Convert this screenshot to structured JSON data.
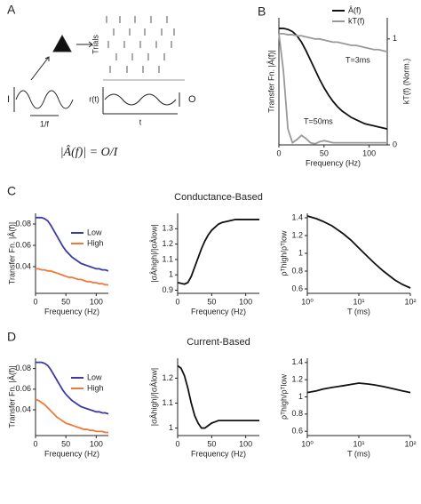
{
  "panel_labels": [
    "A",
    "B",
    "C",
    "D"
  ],
  "panel_a": {
    "trials": "Trials",
    "input": "I",
    "period": "1/f",
    "rate": "r(t)",
    "time": "t",
    "output": "O",
    "formula": "|Â(f)| = O/I"
  },
  "chart_data": [
    {
      "type": "line",
      "xlabel": "Frequency (Hz)",
      "ylabel": "Transfer Fn. |Â(f)|",
      "y2label": "kT(f) (Norm.)",
      "annotations": [
        "T=3ms",
        "T=50ms"
      ],
      "x": [
        0,
        5,
        10,
        15,
        20,
        25,
        30,
        35,
        40,
        45,
        50,
        55,
        60,
        65,
        70,
        75,
        80,
        85,
        90,
        95,
        100,
        105,
        110,
        115,
        120
      ],
      "xlim": [
        0,
        120
      ],
      "xticks": [
        0,
        50,
        100
      ],
      "ylim": [
        0,
        1.2
      ],
      "yticks": [],
      "y2lim": [
        0,
        1.2
      ],
      "y2ticks": [
        0,
        1
      ],
      "series": [
        {
          "name": "Â(f)",
          "color": "#111111",
          "values": [
            1.1,
            1.1,
            1.09,
            1.07,
            1.03,
            0.97,
            0.89,
            0.8,
            0.71,
            0.62,
            0.54,
            0.47,
            0.41,
            0.36,
            0.32,
            0.29,
            0.26,
            0.24,
            0.22,
            0.2,
            0.19,
            0.18,
            0.17,
            0.16,
            0.15
          ]
        },
        {
          "name": "kT(f)",
          "color": "#999999",
          "axis": "y2",
          "values": [
            1.05,
            1.05,
            1.04,
            1.04,
            1.03,
            1.03,
            1.02,
            1.01,
            1.0,
            1.0,
            0.99,
            0.98,
            0.97,
            0.97,
            0.96,
            0.95,
            0.94,
            0.94,
            0.93,
            0.92,
            0.91,
            0.9,
            0.9,
            0.89,
            0.88
          ]
        },
        {
          "color": "#999999",
          "axis": "y2",
          "values": [
            1.05,
            0.7,
            0.15,
            0.02,
            0.05,
            0.09,
            0.06,
            0.02,
            0.01,
            0.03,
            0.04,
            0.03,
            0.02,
            0.02,
            0.02,
            0.02,
            0.02,
            0.02,
            0.02,
            0.02,
            0.02,
            0.02,
            0.02,
            0.02,
            0.02
          ]
        }
      ]
    },
    {
      "type": "line",
      "xlabel": "Frequency (Hz)",
      "ylabel": "Transfer Fn. |Â(f)|",
      "x": [
        0,
        5,
        10,
        15,
        20,
        25,
        30,
        35,
        40,
        45,
        50,
        55,
        60,
        65,
        70,
        75,
        80,
        85,
        90,
        95,
        100,
        105,
        110,
        115,
        120
      ],
      "xlim": [
        0,
        120
      ],
      "xticks": [
        0,
        50,
        100
      ],
      "ylim": [
        0.015,
        0.09
      ],
      "yticks": [
        0.04,
        0.06,
        0.08
      ],
      "legend": "upper right",
      "series": [
        {
          "name": "Low",
          "color": "#3a3aa8",
          "values": [
            0.086,
            0.086,
            0.086,
            0.085,
            0.083,
            0.079,
            0.074,
            0.069,
            0.064,
            0.059,
            0.055,
            0.052,
            0.049,
            0.047,
            0.045,
            0.043,
            0.042,
            0.041,
            0.04,
            0.039,
            0.038,
            0.038,
            0.037,
            0.037,
            0.036
          ]
        },
        {
          "name": "High",
          "color": "#f07838",
          "values": [
            0.038,
            0.038,
            0.037,
            0.037,
            0.036,
            0.036,
            0.035,
            0.034,
            0.033,
            0.032,
            0.031,
            0.03,
            0.03,
            0.029,
            0.028,
            0.028,
            0.027,
            0.026,
            0.026,
            0.025,
            0.025,
            0.024,
            0.024,
            0.023,
            0.023
          ]
        }
      ]
    },
    {
      "type": "line",
      "title": "Conductance-Based",
      "xlabel": "Frequency (Hz)",
      "ylabel": "|σÂhigh|/|σÂlow|",
      "x": [
        0,
        5,
        10,
        15,
        20,
        25,
        30,
        35,
        40,
        45,
        50,
        55,
        60,
        65,
        70,
        75,
        80,
        85,
        90,
        95,
        100,
        105,
        110,
        115,
        120
      ],
      "xlim": [
        0,
        120
      ],
      "xticks": [
        0,
        50,
        100
      ],
      "ylim": [
        0.88,
        1.4
      ],
      "yticks": [
        0.9,
        1,
        1.1,
        1.2,
        1.3
      ],
      "series": [
        {
          "color": "#111111",
          "values": [
            0.95,
            0.945,
            0.94,
            0.95,
            0.99,
            1.05,
            1.11,
            1.17,
            1.22,
            1.26,
            1.29,
            1.31,
            1.33,
            1.34,
            1.345,
            1.35,
            1.355,
            1.36,
            1.36,
            1.36,
            1.36,
            1.36,
            1.36,
            1.36,
            1.36
          ]
        }
      ]
    },
    {
      "type": "line",
      "xlabel": "T (ms)",
      "ylabel": "ρᵀhigh/ρᵀlow",
      "xscale": "log",
      "x": [
        1,
        1.5,
        2,
        3,
        5,
        7,
        10,
        15,
        20,
        30,
        50,
        70,
        100
      ],
      "xlim": [
        1,
        100
      ],
      "xticks": [
        {
          "value": 1,
          "label": "10⁰"
        },
        {
          "value": 10,
          "label": "10¹"
        },
        {
          "value": 100,
          "label": "10²"
        }
      ],
      "ylim": [
        0.55,
        1.45
      ],
      "yticks": [
        0.6,
        0.8,
        1,
        1.2,
        1.4
      ],
      "series": [
        {
          "color": "#111111",
          "values": [
            1.42,
            1.39,
            1.36,
            1.31,
            1.22,
            1.15,
            1.06,
            0.96,
            0.89,
            0.8,
            0.7,
            0.65,
            0.61
          ]
        }
      ]
    },
    {
      "type": "line",
      "xlabel": "Frequency (Hz)",
      "ylabel": "Transfer Fn. |Â(f)|",
      "x": [
        0,
        5,
        10,
        15,
        20,
        25,
        30,
        35,
        40,
        45,
        50,
        55,
        60,
        65,
        70,
        75,
        80,
        85,
        90,
        95,
        100,
        105,
        110,
        115,
        120
      ],
      "xlim": [
        0,
        120
      ],
      "xticks": [
        0,
        50,
        100
      ],
      "ylim": [
        0.015,
        0.09
      ],
      "yticks": [
        0.04,
        0.06,
        0.08
      ],
      "legend": "upper right",
      "series": [
        {
          "name": "Low",
          "color": "#3a3aa8",
          "values": [
            0.086,
            0.086,
            0.086,
            0.085,
            0.083,
            0.079,
            0.074,
            0.069,
            0.064,
            0.059,
            0.055,
            0.052,
            0.049,
            0.047,
            0.045,
            0.043,
            0.042,
            0.041,
            0.04,
            0.039,
            0.038,
            0.038,
            0.037,
            0.037,
            0.036
          ]
        },
        {
          "name": "High",
          "color": "#f07838",
          "values": [
            0.05,
            0.049,
            0.047,
            0.045,
            0.042,
            0.039,
            0.036,
            0.033,
            0.031,
            0.029,
            0.027,
            0.026,
            0.025,
            0.024,
            0.023,
            0.022,
            0.021,
            0.021,
            0.02,
            0.02,
            0.019,
            0.019,
            0.019,
            0.018,
            0.018
          ]
        }
      ]
    },
    {
      "type": "line",
      "title": "Current-Based",
      "xlabel": "Frequency (Hz)",
      "ylabel": "|σÂhigh|/|σÂlow|",
      "x": [
        0,
        5,
        10,
        15,
        20,
        25,
        30,
        35,
        40,
        45,
        50,
        55,
        60,
        65,
        70,
        75,
        80,
        85,
        90,
        95,
        100,
        105,
        110,
        115,
        120
      ],
      "xlim": [
        0,
        120
      ],
      "xticks": [
        0,
        50,
        100
      ],
      "ylim": [
        0.97,
        1.28
      ],
      "yticks": [
        1,
        1.1,
        1.2
      ],
      "series": [
        {
          "color": "#111111",
          "values": [
            1.25,
            1.24,
            1.21,
            1.16,
            1.1,
            1.05,
            1.02,
            1.0,
            1.0,
            1.01,
            1.02,
            1.025,
            1.03,
            1.03,
            1.03,
            1.03,
            1.03,
            1.03,
            1.03,
            1.03,
            1.03,
            1.03,
            1.03,
            1.03,
            1.03
          ]
        }
      ]
    },
    {
      "type": "line",
      "xlabel": "T (ms)",
      "ylabel": "ρᵀhigh/ρᵀlow",
      "xscale": "log",
      "x": [
        1,
        1.5,
        2,
        3,
        5,
        7,
        10,
        15,
        20,
        30,
        50,
        70,
        100
      ],
      "xlim": [
        1,
        100
      ],
      "xticks": [
        {
          "value": 1,
          "label": "10⁰"
        },
        {
          "value": 10,
          "label": "10¹"
        },
        {
          "value": 100,
          "label": "10²"
        }
      ],
      "ylim": [
        0.55,
        1.45
      ],
      "yticks": [
        0.6,
        0.8,
        1,
        1.2,
        1.4
      ],
      "series": [
        {
          "color": "#111111",
          "values": [
            1.05,
            1.07,
            1.09,
            1.11,
            1.13,
            1.145,
            1.16,
            1.15,
            1.14,
            1.12,
            1.09,
            1.07,
            1.05
          ]
        }
      ]
    }
  ]
}
